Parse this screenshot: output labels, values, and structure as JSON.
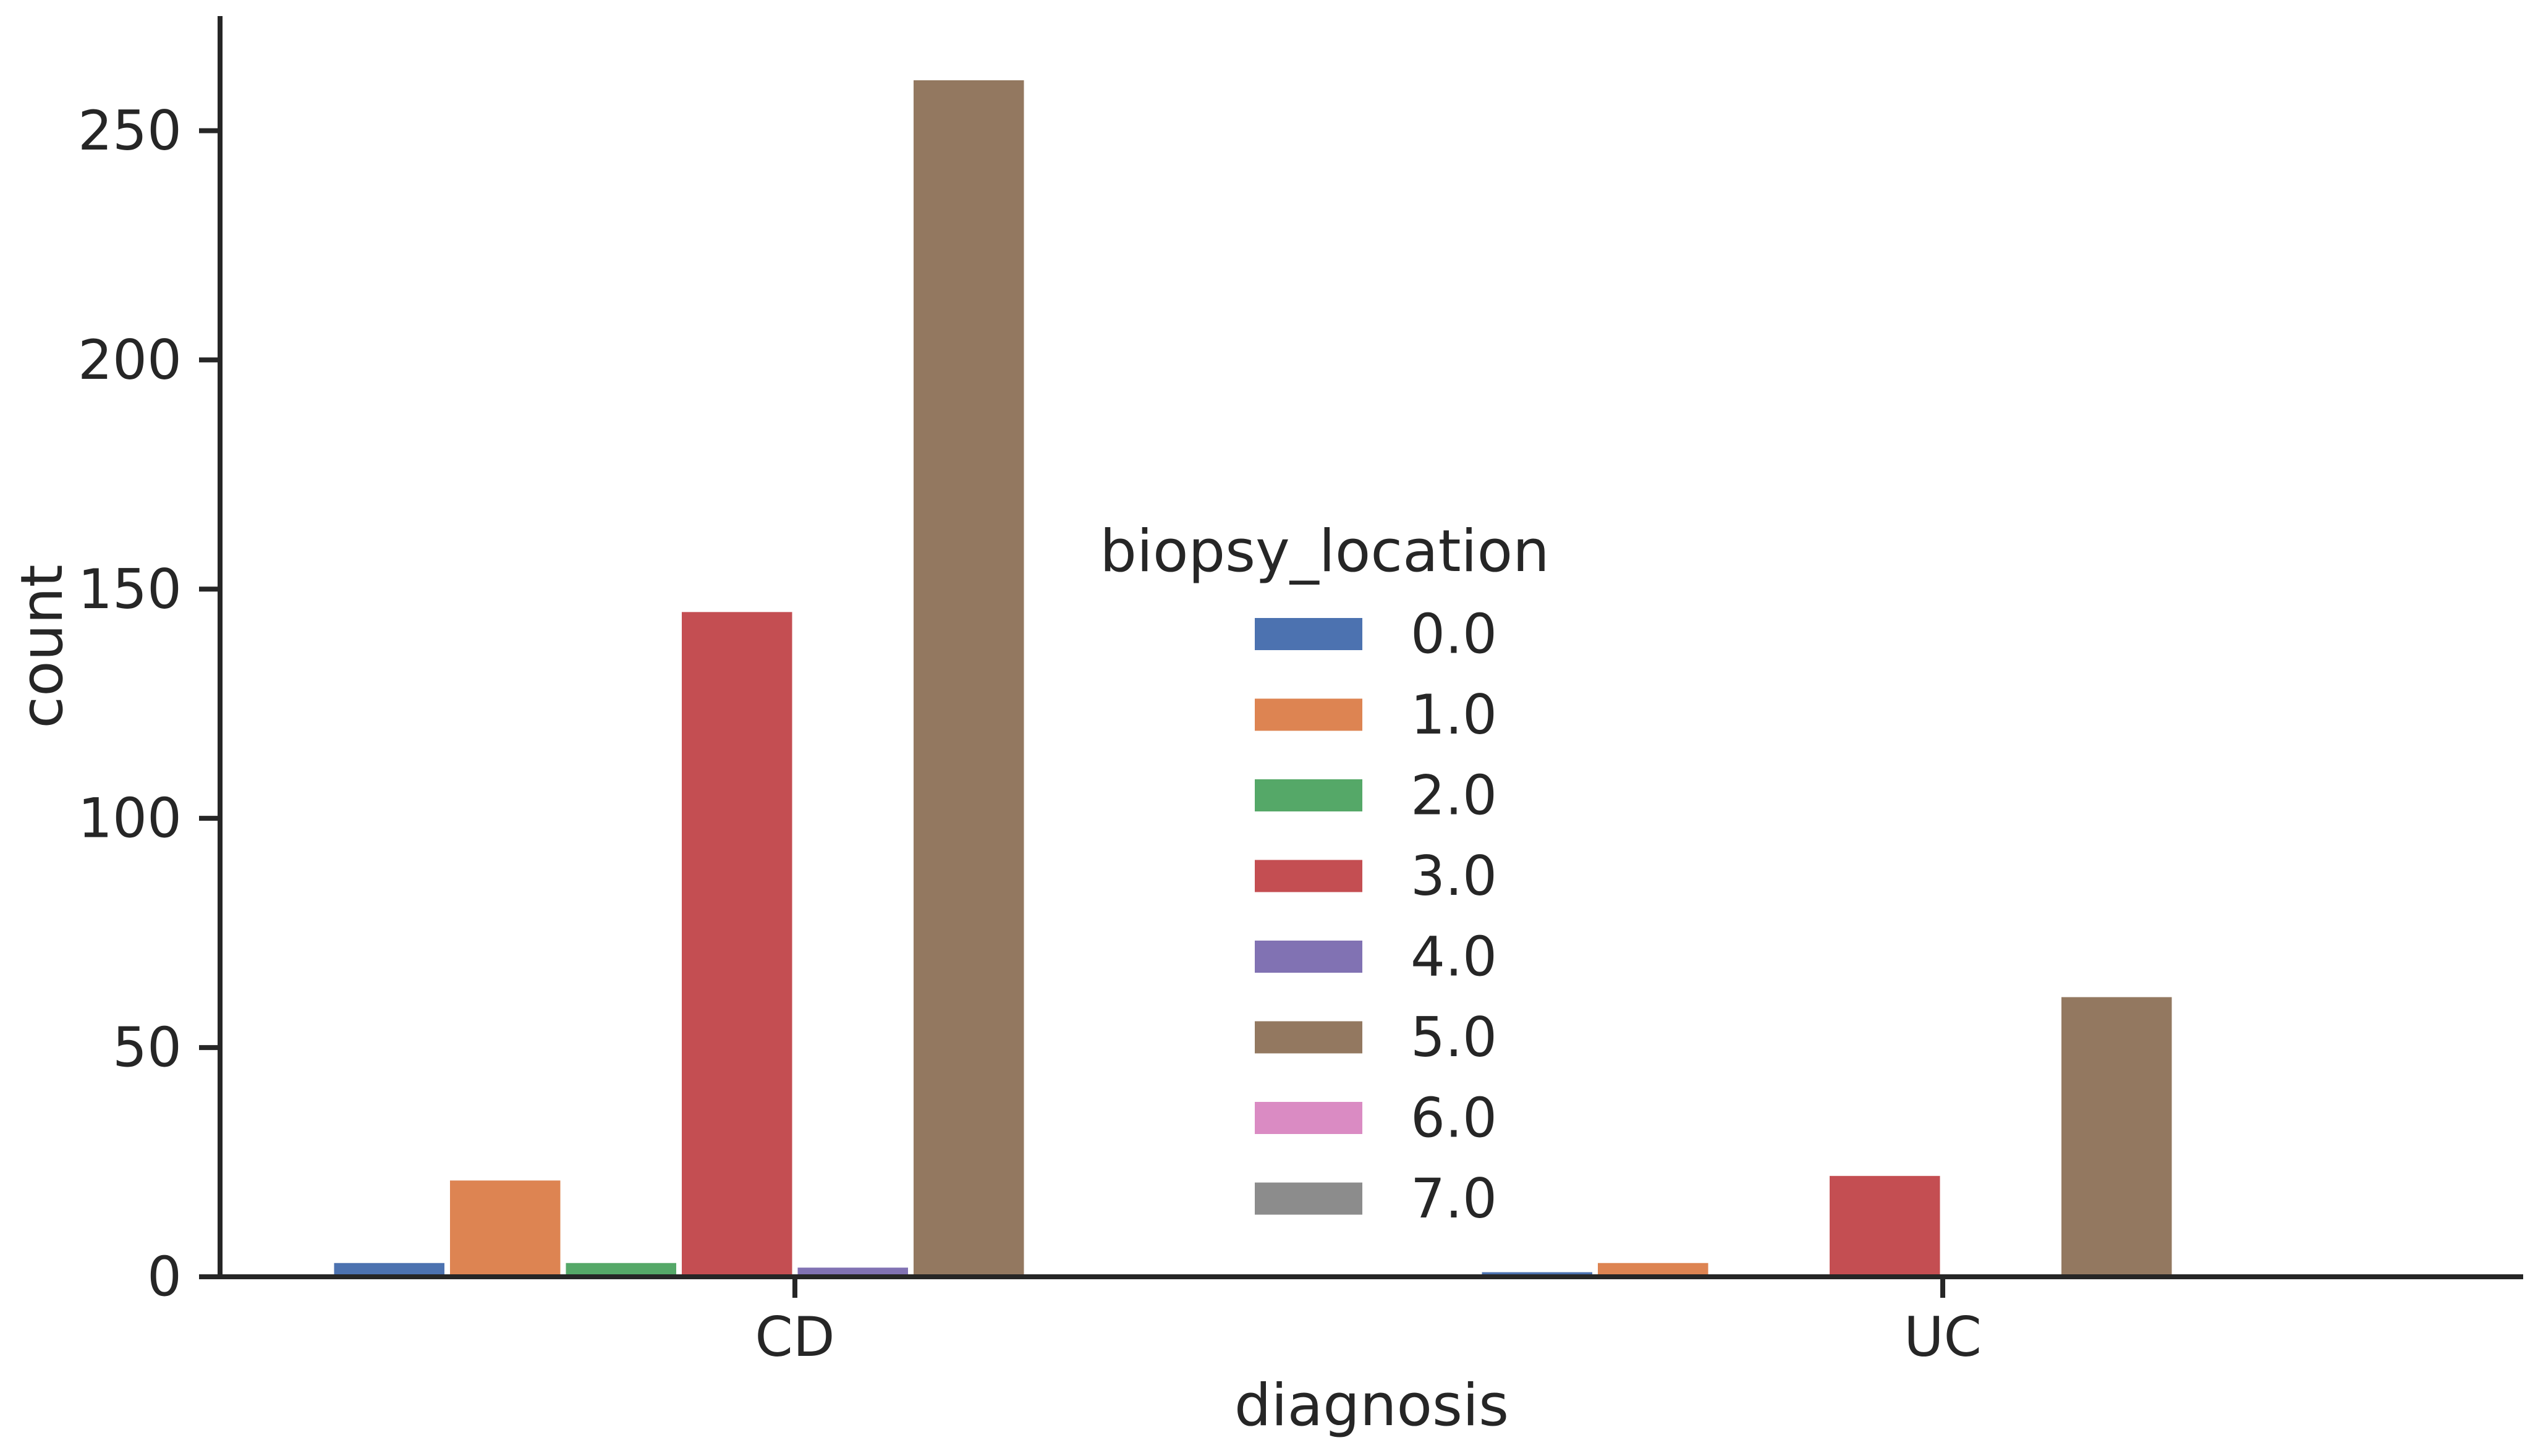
{
  "chart_data": {
    "type": "bar",
    "title": "",
    "xlabel": "diagnosis",
    "ylabel": "count",
    "categories": [
      "CD",
      "UC"
    ],
    "ylim": [
      0,
      275
    ],
    "yticks": [
      0,
      50,
      100,
      150,
      200,
      250
    ],
    "grid": false,
    "legend": {
      "title": "biopsy_location",
      "placement": "center"
    },
    "series": [
      {
        "name": "0.0",
        "color": "#4c72b0",
        "values": [
          3,
          1
        ]
      },
      {
        "name": "1.0",
        "color": "#dd8452",
        "values": [
          21,
          3
        ]
      },
      {
        "name": "2.0",
        "color": "#55a868",
        "values": [
          3,
          0
        ]
      },
      {
        "name": "3.0",
        "color": "#c44e52",
        "values": [
          145,
          22
        ]
      },
      {
        "name": "4.0",
        "color": "#8172b3",
        "values": [
          2,
          0
        ]
      },
      {
        "name": "5.0",
        "color": "#937860",
        "values": [
          261,
          61
        ]
      },
      {
        "name": "6.0",
        "color": "#da8bc3",
        "values": [
          0,
          0
        ]
      },
      {
        "name": "7.0",
        "color": "#8c8c8c",
        "values": [
          0,
          0
        ]
      }
    ]
  }
}
